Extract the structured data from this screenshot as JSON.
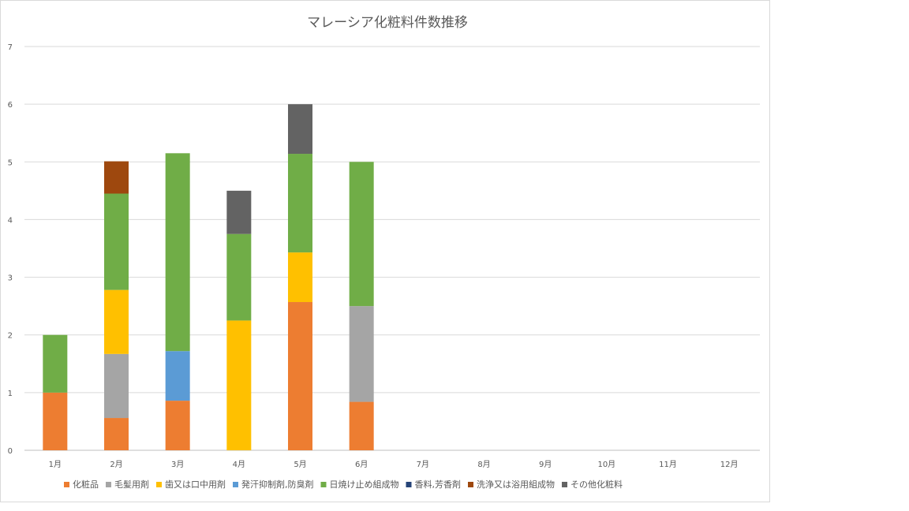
{
  "chart_data": {
    "type": "bar",
    "stacked": true,
    "title": "マレーシア化粧料件数推移",
    "xlabel": "",
    "ylabel": "",
    "ylim": [
      0,
      7
    ],
    "y_ticks": [
      "0",
      "1",
      "2",
      "3",
      "4",
      "5",
      "6",
      "7"
    ],
    "grid": true,
    "legend_position": "bottom",
    "categories": [
      "1月",
      "2月",
      "3月",
      "4月",
      "5月",
      "6月",
      "7月",
      "8月",
      "9月",
      "10月",
      "11月",
      "12月"
    ],
    "series": [
      {
        "name": "化粧品",
        "color": "#ED7D31",
        "values": [
          1,
          0.56,
          0.86,
          0,
          2.57,
          0.84,
          0,
          0,
          0,
          0,
          0,
          0
        ]
      },
      {
        "name": "毛髪用剤",
        "color": "#A5A5A5",
        "values": [
          0,
          1.11,
          0,
          0,
          0,
          1.66,
          0,
          0,
          0,
          0,
          0,
          0
        ]
      },
      {
        "name": "歯又は口中用剤",
        "color": "#FFC000",
        "values": [
          0,
          1.11,
          0,
          2.25,
          0.86,
          0,
          0,
          0,
          0,
          0,
          0,
          0
        ]
      },
      {
        "name": "発汗抑制剤,防臭剤",
        "color": "#5B9BD5",
        "values": [
          0,
          0,
          0.86,
          0,
          0,
          0,
          0,
          0,
          0,
          0,
          0,
          0
        ]
      },
      {
        "name": "日焼け止め組成物",
        "color": "#70AD47",
        "values": [
          1,
          1.67,
          3.43,
          1.5,
          1.71,
          2.5,
          0,
          0,
          0,
          0,
          0,
          0
        ]
      },
      {
        "name": "香料,芳香剤",
        "color": "#264478",
        "values": [
          0,
          0,
          0,
          0,
          0,
          0,
          0,
          0,
          0,
          0,
          0,
          0
        ]
      },
      {
        "name": "洗浄又は浴用組成物",
        "color": "#9E480E",
        "values": [
          0,
          0.56,
          0,
          0,
          0,
          0,
          0,
          0,
          0,
          0,
          0,
          0
        ]
      },
      {
        "name": "その他化粧料",
        "color": "#636363",
        "values": [
          0,
          0,
          0,
          0.75,
          0.86,
          0,
          0,
          0,
          0,
          0,
          0,
          0
        ]
      }
    ]
  }
}
